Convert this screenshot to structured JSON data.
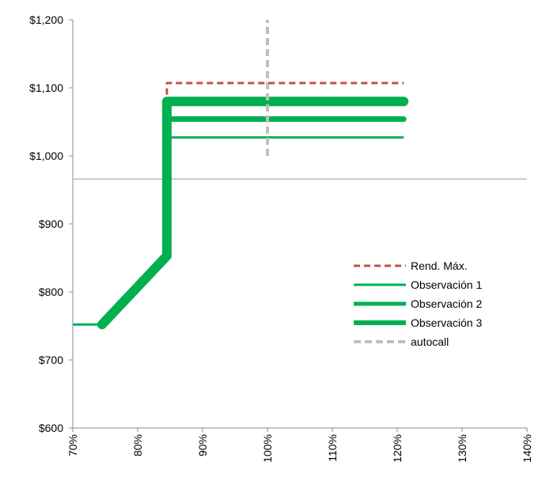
{
  "chart_data": {
    "type": "line",
    "title": "",
    "xlabel": "",
    "ylabel": "",
    "xlim": [
      0.7,
      1.4
    ],
    "ylim": [
      600,
      1200
    ],
    "x_ticks": [
      0.7,
      0.8,
      0.9,
      1.0,
      1.1,
      1.2,
      1.3,
      1.4
    ],
    "x_tick_labels": [
      "70%",
      "80%",
      "90%",
      "100%",
      "110%",
      "120%",
      "130%",
      "140%"
    ],
    "y_ticks": [
      600,
      700,
      800,
      900,
      1000,
      1100,
      1200
    ],
    "y_tick_labels": [
      "$600",
      "$700",
      "$800",
      "$900",
      "$1,000",
      "$1,100",
      "$1,200"
    ],
    "reference_line_y": 966,
    "legend_placement": "right",
    "series": [
      {
        "name": "Rend. Máx.",
        "color": "#c0504d",
        "style": "dashed",
        "points": [
          [
            0.845,
            1090
          ],
          [
            0.845,
            1107
          ],
          [
            1.21,
            1107
          ]
        ]
      },
      {
        "name": "Observación 1",
        "color": "#00b050",
        "style": "solid",
        "points": [
          [
            0.7,
            752
          ],
          [
            0.745,
            752
          ],
          [
            0.845,
            853
          ],
          [
            0.845,
            1027
          ],
          [
            1.21,
            1027
          ]
        ]
      },
      {
        "name": "Observación 2",
        "color": "#00b050",
        "style": "solid",
        "points": [
          [
            0.745,
            752
          ],
          [
            0.845,
            853
          ],
          [
            0.845,
            1054
          ],
          [
            1.21,
            1054
          ]
        ]
      },
      {
        "name": "Observación 3",
        "color": "#00b050",
        "style": "solid",
        "points": [
          [
            0.745,
            752
          ],
          [
            0.845,
            853
          ],
          [
            0.845,
            1080
          ],
          [
            1.21,
            1080
          ]
        ]
      },
      {
        "name": "autocall",
        "color": "#bfbfbf",
        "style": "dashed",
        "points": [
          [
            1.0,
            1000
          ],
          [
            1.0,
            1200
          ]
        ]
      }
    ]
  }
}
